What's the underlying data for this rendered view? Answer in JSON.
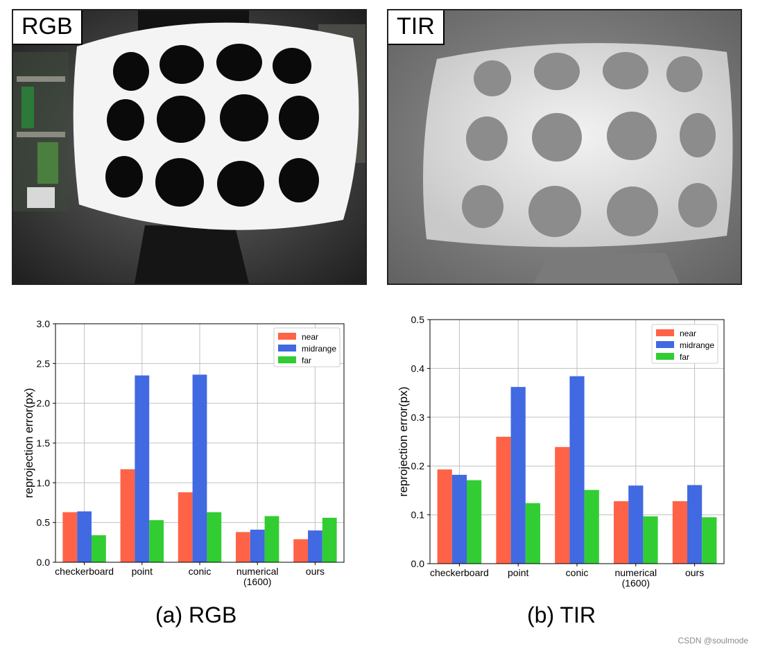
{
  "photos": [
    {
      "label": "RGB"
    },
    {
      "label": "TIR"
    }
  ],
  "colors": {
    "near": "#ff6347",
    "midrange": "#4169e1",
    "far": "#32cd32",
    "grid": "#c0c0c0"
  },
  "chart_data": [
    {
      "type": "bar",
      "categories": [
        "checkerboard",
        "point",
        "conic",
        "numerical\n(1600)",
        "ours"
      ],
      "series": [
        {
          "name": "near",
          "values": [
            0.63,
            1.17,
            0.88,
            0.38,
            0.29
          ]
        },
        {
          "name": "midrange",
          "values": [
            0.64,
            2.35,
            2.36,
            0.41,
            0.4
          ]
        },
        {
          "name": "far",
          "values": [
            0.34,
            0.53,
            0.63,
            0.58,
            0.56
          ]
        }
      ],
      "ylabel": "reprojection error(px)",
      "ylim": [
        0,
        3.0
      ],
      "yticks": [
        "0.0",
        "0.5",
        "1.0",
        "1.5",
        "2.0",
        "2.5",
        "3.0"
      ],
      "grid": true,
      "legend": "top-right",
      "caption": "(a) RGB"
    },
    {
      "type": "bar",
      "categories": [
        "checkerboard",
        "point",
        "conic",
        "numerical\n(1600)",
        "ours"
      ],
      "series": [
        {
          "name": "near",
          "values": [
            0.193,
            0.26,
            0.239,
            0.128,
            0.128
          ]
        },
        {
          "name": "midrange",
          "values": [
            0.182,
            0.362,
            0.384,
            0.16,
            0.161
          ]
        },
        {
          "name": "far",
          "values": [
            0.171,
            0.124,
            0.151,
            0.097,
            0.095
          ]
        }
      ],
      "ylabel": "reprojection error(px)",
      "ylim": [
        0,
        0.5
      ],
      "yticks": [
        "0.0",
        "0.1",
        "0.2",
        "0.3",
        "0.4",
        "0.5"
      ],
      "grid": true,
      "legend": "top-right",
      "caption": "(b) TIR"
    }
  ],
  "watermark": "CSDN @soulmode"
}
